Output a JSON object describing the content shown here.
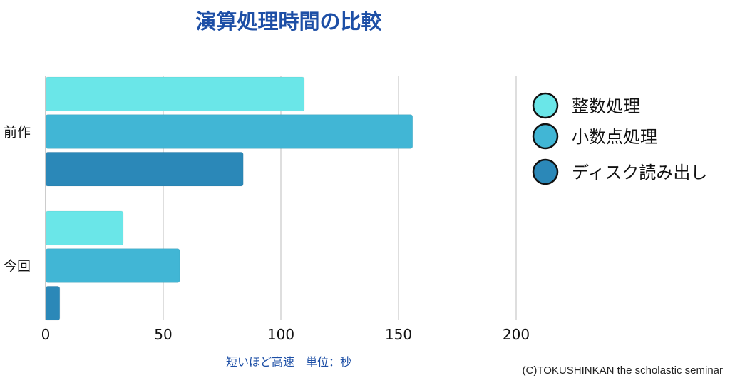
{
  "chart_data": {
    "type": "bar",
    "orientation": "horizontal",
    "title": "演算処理時間の比較",
    "categories": [
      "前作",
      "今回"
    ],
    "series": [
      {
        "name": "整数処理",
        "values": [
          110,
          33
        ],
        "color": "#6ae6e8"
      },
      {
        "name": "小数点処理",
        "values": [
          156,
          57
        ],
        "color": "#41b6d5"
      },
      {
        "name": "ディスク読み出し",
        "values": [
          84,
          6
        ],
        "color": "#2b88b8"
      }
    ],
    "xlim": [
      0,
      200
    ],
    "xticks": [
      0,
      50,
      100,
      150,
      200
    ],
    "xlabel": "短いほど高速　単位：秒",
    "ylabel": "",
    "grid": true,
    "legend": "right"
  },
  "copyright": "(C)TOKUSHINKAN the scholastic seminar"
}
